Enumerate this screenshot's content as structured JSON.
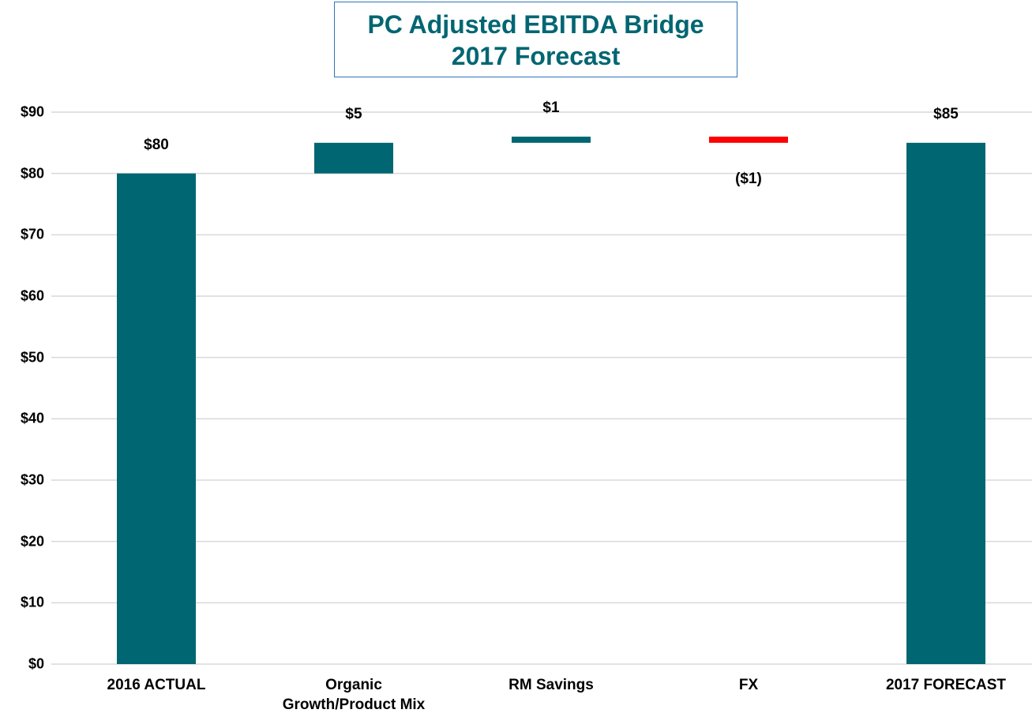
{
  "chart_data": {
    "type": "waterfall",
    "title": "PC Adjusted EBITDA Bridge",
    "subtitle": "2017 Forecast",
    "categories": [
      "2016 ACTUAL",
      "Organic Growth/Product Mix",
      "RM Savings",
      "FX",
      "2017 FORECAST"
    ],
    "values": [
      80,
      5,
      1,
      -1,
      85
    ],
    "value_labels": [
      "$80",
      "$5",
      "$1",
      "($1)",
      "$85"
    ],
    "measure": [
      "absolute",
      "relative",
      "relative",
      "relative",
      "total"
    ],
    "colors": {
      "increase": "#006672",
      "decrease": "#ff0000",
      "total": "#006672"
    },
    "ylim": [
      0,
      90
    ],
    "yticks": [
      {
        "value": 0,
        "label": "$0"
      },
      {
        "value": 10,
        "label": "$10"
      },
      {
        "value": 20,
        "label": "$20"
      },
      {
        "value": 30,
        "label": "$30"
      },
      {
        "value": 40,
        "label": "$40"
      },
      {
        "value": 50,
        "label": "$50"
      },
      {
        "value": 60,
        "label": "$60"
      },
      {
        "value": 70,
        "label": "$70"
      },
      {
        "value": 80,
        "label": "$80"
      },
      {
        "value": 90,
        "label": "$90"
      }
    ],
    "grid": true
  }
}
